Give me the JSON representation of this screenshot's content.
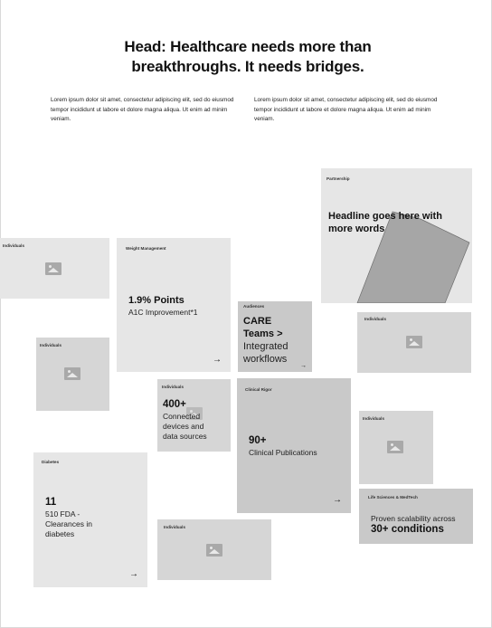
{
  "header": {
    "title": "Head: Healthcare needs more than breakthroughs. It needs bridges.",
    "intro_left": "Lorem ipsum dolor sit amet, consectetur adipiscing elit, sed do eiusmod tempor incididunt ut labore et dolore magna aliqua. Ut enim ad minim veniam.",
    "intro_right": "Lorem ipsum dolor sit amet, consectetur adipiscing elit, sed do eiusmod tempor incididunt ut labore et dolore magna aliqua. Ut enim ad minim veniam."
  },
  "cards": {
    "partnership": {
      "tag": "Partnership",
      "headline": "Headline goes here with more words"
    },
    "individuals_a": {
      "tag": "Individuals",
      "icon": "image-icon"
    },
    "weight": {
      "tag": "Weight Management",
      "value": "1.9% Points",
      "label": "A1C Improvement*1",
      "arrow": "→"
    },
    "audiences": {
      "tag": "Audiences",
      "line1": "CARE",
      "line2": "Teams >",
      "line3": "Integrated",
      "line4": "workflows",
      "arrow": "→"
    },
    "individuals_b": {
      "tag": "Individuals",
      "icon": "image-icon"
    },
    "individuals_c": {
      "tag": "Individuals",
      "icon": "image-icon"
    },
    "connected": {
      "tag": "Individuals",
      "value": "400+",
      "label1": "Connected",
      "label2": "devices and",
      "label3": "data sources"
    },
    "clinical": {
      "tag": "Clinical Rigor",
      "value": "90+",
      "label": "Clinical Publications",
      "arrow": "→"
    },
    "individuals_d": {
      "tag": "Individuals",
      "icon": "image-icon"
    },
    "diabetes": {
      "tag": "Diabetes",
      "value": "11",
      "label1": "510 FDA -",
      "label2": "Clearances in",
      "label3": "diabetes",
      "arrow": "→"
    },
    "individuals_e": {
      "tag": "Individuals",
      "icon": "image-icon"
    },
    "lifesci": {
      "tag": "Life Sciences & MedTech",
      "label": "Proven scalability across",
      "value": "30+ conditions"
    }
  }
}
